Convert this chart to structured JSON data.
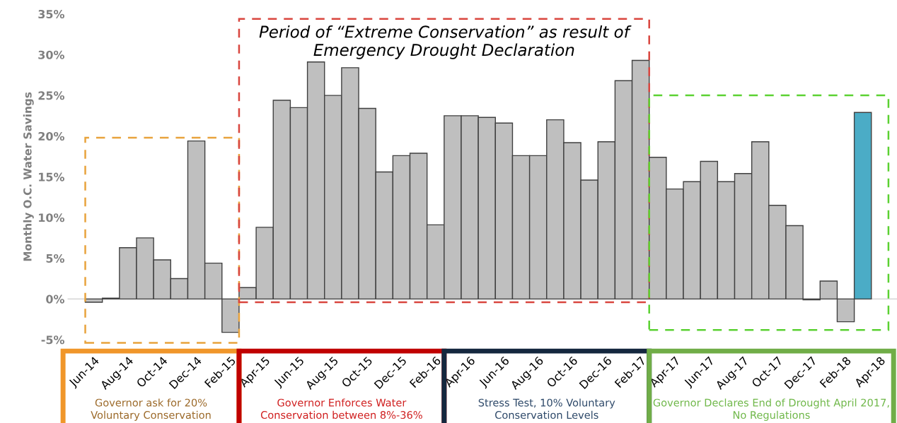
{
  "chart_data": {
    "type": "bar",
    "ylabel": "Monthly O.C. Water Savings",
    "categories": [
      "Jun-14",
      null,
      "Aug-14",
      null,
      "Oct-14",
      null,
      "Dec-14",
      null,
      "Feb-15",
      null,
      "Apr-15",
      null,
      "Jun-15",
      null,
      "Aug-15",
      null,
      "Oct-15",
      null,
      "Dec-15",
      null,
      "Feb-16",
      null,
      "Apr-16",
      null,
      "Jun-16",
      null,
      "Aug-16",
      null,
      "Oct-16",
      null,
      "Dec-16",
      null,
      "Feb-17",
      null,
      "Apr-17",
      null,
      "Jun-17",
      null,
      "Aug-17",
      null,
      "Oct-17",
      null,
      "Dec-17",
      null,
      "Feb-18",
      null,
      "Apr-18"
    ],
    "values": [
      -0.4,
      0.1,
      6.3,
      7.5,
      4.8,
      2.5,
      19.4,
      4.4,
      -4.1,
      1.4,
      8.8,
      24.4,
      23.5,
      29.1,
      25.0,
      28.4,
      23.4,
      15.6,
      17.6,
      17.9,
      9.1,
      22.5,
      22.5,
      22.3,
      21.6,
      17.6,
      17.6,
      22.0,
      19.2,
      14.6,
      19.3,
      26.8,
      29.3,
      17.4,
      13.5,
      14.4,
      16.9,
      14.4,
      15.4,
      19.3,
      11.5,
      9.0,
      -0.1,
      2.2,
      -2.8,
      22.9,
      null
    ],
    "colors": [
      "#bfbfbf",
      "#bfbfbf",
      "#bfbfbf",
      "#bfbfbf",
      "#bfbfbf",
      "#bfbfbf",
      "#bfbfbf",
      "#bfbfbf",
      "#bfbfbf",
      "#bfbfbf",
      "#bfbfbf",
      "#bfbfbf",
      "#bfbfbf",
      "#bfbfbf",
      "#bfbfbf",
      "#bfbfbf",
      "#bfbfbf",
      "#bfbfbf",
      "#bfbfbf",
      "#bfbfbf",
      "#bfbfbf",
      "#bfbfbf",
      "#bfbfbf",
      "#bfbfbf",
      "#bfbfbf",
      "#bfbfbf",
      "#bfbfbf",
      "#bfbfbf",
      "#bfbfbf",
      "#bfbfbf",
      "#bfbfbf",
      "#bfbfbf",
      "#bfbfbf",
      "#bfbfbf",
      "#bfbfbf",
      "#bfbfbf",
      "#bfbfbf",
      "#bfbfbf",
      "#bfbfbf",
      "#bfbfbf",
      "#bfbfbf",
      "#bfbfbf",
      "#bfbfbf",
      "#bfbfbf",
      "#bfbfbf",
      "#4bacc6",
      "#bfbfbf"
    ],
    "ylim": [
      -5,
      35
    ],
    "yticks": [
      {
        "value": -5,
        "label": "-5%"
      },
      {
        "value": 0,
        "label": "0%"
      },
      {
        "value": 5,
        "label": "5%"
      },
      {
        "value": 10,
        "label": "10%"
      },
      {
        "value": 15,
        "label": "15%"
      },
      {
        "value": 20,
        "label": "20%"
      },
      {
        "value": 25,
        "label": "25%"
      },
      {
        "value": 30,
        "label": "30%"
      },
      {
        "value": 35,
        "label": "35%"
      }
    ],
    "annotations": [
      "Period of “Extreme Conservation” as result of\nEmergency Drought Declaration",
      "Governor ask for 20%\nVoluntary Conservation",
      "Governor Enforces Water\nConservation between 8%-36%",
      "Stress Test, 10% Voluntary\nConservation Levels",
      "Governor Declares End of Drought April 2017,\nNo Regulations"
    ]
  }
}
